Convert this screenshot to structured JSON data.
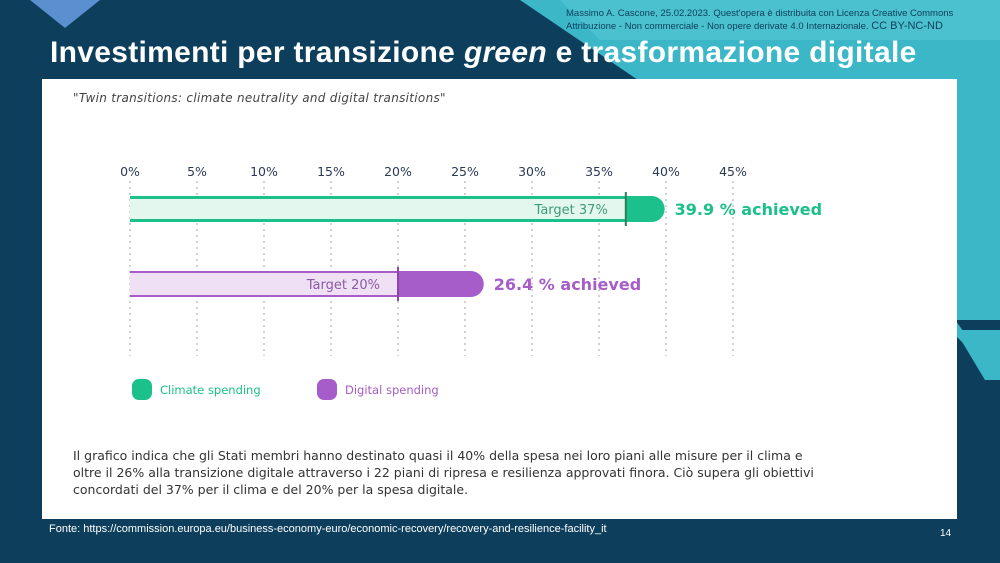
{
  "slide": {
    "title_part1": "Investimenti per transizione ",
    "title_italic": "green",
    "title_part2": " e trasformazione digitale",
    "license_text": "Massimo A. Cascone, 25.02.2023. Quest'opera è distribuita con Licenza Creative Commons Attribuzione - Non commerciale - Non opere derivate 4.0 Internazionale.",
    "license_badge": "CC BY-NC-ND",
    "source": "Fonte: https://commission.europa.eu/business-economy-euro/economic-recovery/recovery-and-resilience-facility_it",
    "page_number": "14",
    "caption": "Il grafico indica che gli Stati membri hanno destinato quasi il 40% della spesa nei loro piani alle misure per il clima e oltre il 26% alla transizione digitale attraverso i 22 piani di ripresa e resilienza approvati finora. Ciò supera gli obiettivi concordati del 37% per il clima e del 20% per la spesa digitale."
  },
  "colors": {
    "background": "#0d3f5c",
    "accent_teal": "#3bb7c8",
    "climate": "#1cc08a",
    "climate_light": "#e3f7ee",
    "digital": "#a65cc9",
    "digital_light": "#efe0f5"
  },
  "chart_data": {
    "type": "bar",
    "orientation": "horizontal",
    "title": "\"Twin transitions: climate neutrality and digital transitions\"",
    "xlim": [
      0,
      45
    ],
    "xticks": [
      0,
      5,
      10,
      15,
      20,
      25,
      30,
      35,
      40,
      45
    ],
    "tick_labels": [
      "0%",
      "5%",
      "10%",
      "15%",
      "20%",
      "25%",
      "30%",
      "35%",
      "40%",
      "45%"
    ],
    "grid": "vertical dotted",
    "legend_position": "bottom-left",
    "series": [
      {
        "name": "Climate spending",
        "target": 37,
        "target_label": "Target 37%",
        "achieved": 39.9,
        "achieved_label": "39.9 % achieved",
        "color": "#1cc08a"
      },
      {
        "name": "Digital spending",
        "target": 20,
        "target_label": "Target 20%",
        "achieved": 26.4,
        "achieved_label": "26.4 % achieved",
        "color": "#a65cc9"
      }
    ]
  }
}
